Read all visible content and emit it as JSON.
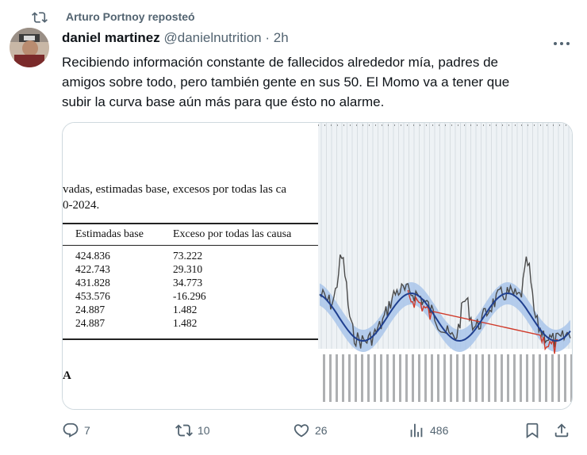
{
  "repost": {
    "label": "Arturo Portnoy reposteó",
    "icon": "repost-icon"
  },
  "author": {
    "name": "daniel martinez",
    "handle": "@danielnutrition",
    "separator": "·",
    "time": "2h"
  },
  "tweet": {
    "text_lines": [
      "Recibiendo información constante de fallecidos alrededor mía, padres de",
      "amigos sobre todo, pero también gente en sus 50. El Momo va a tener que",
      "subir la curva base aún más para que ésto no alarme."
    ]
  },
  "doc": {
    "line1": "vadas, estimadas base, excesos por todas las ca",
    "line2": "0-2024.",
    "col1_header": "Estimadas base",
    "col2_header": "Exceso por todas las causa",
    "rows": [
      [
        "424.836",
        "73.222"
      ],
      [
        "422.743",
        "29.310"
      ],
      [
        "431.828",
        "34.773"
      ],
      [
        "453.576",
        "-16.296"
      ],
      [
        "24.887",
        "1.482"
      ],
      [
        "24.887",
        "1.482"
      ]
    ],
    "footer": "A"
  },
  "actions": {
    "replies": "7",
    "reposts": "10",
    "likes": "26",
    "views": "486"
  },
  "colors": {
    "muted": "#536471",
    "baseline": "#1f3f8f",
    "band": "#a9c5ea",
    "observed": "#4a4a4a",
    "excess": "#d03a2a",
    "deficit": "#8a3fb5"
  }
}
